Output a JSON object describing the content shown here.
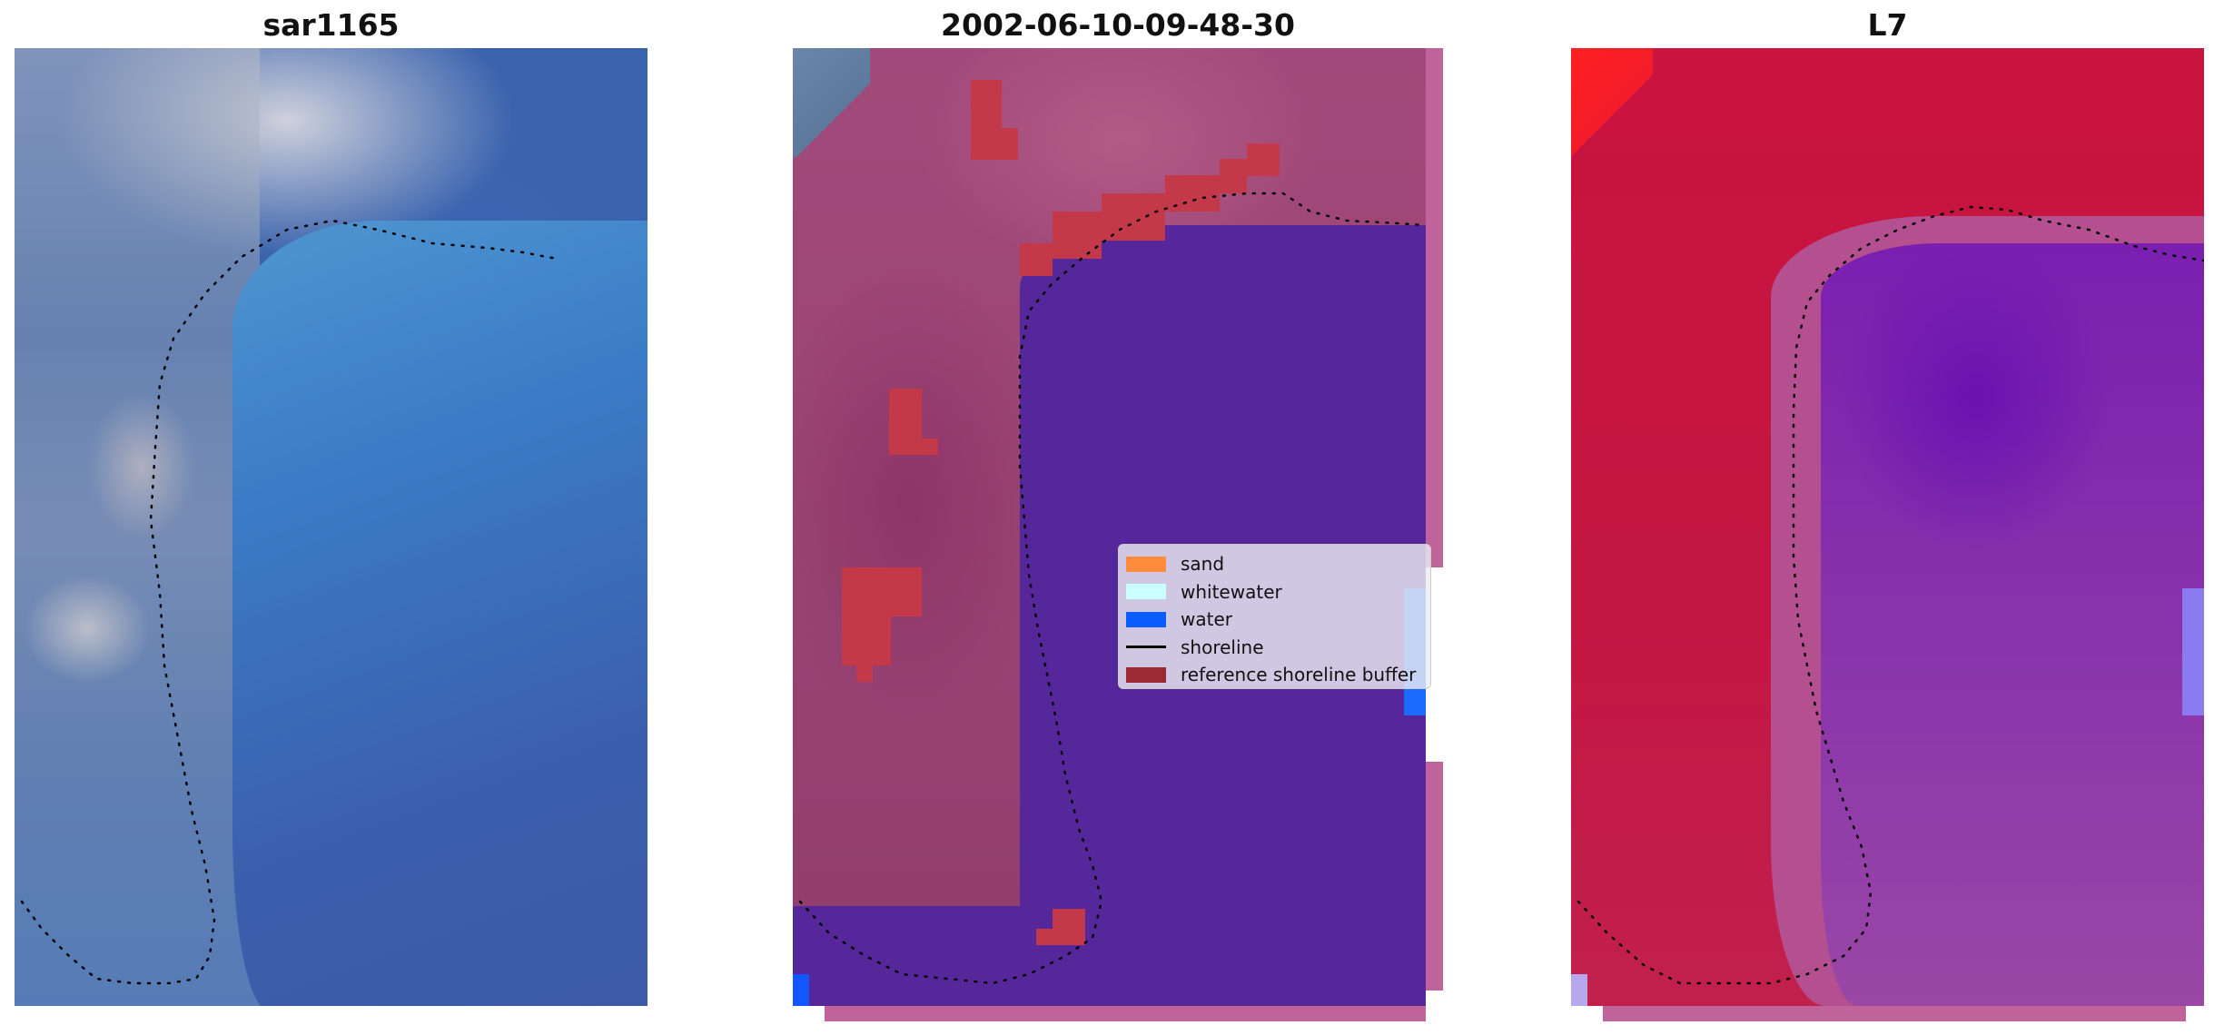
{
  "figure": {
    "panels": [
      {
        "title": "sar1165"
      },
      {
        "title": "2002-06-10-09-48-30"
      },
      {
        "title": "L7"
      }
    ],
    "legend": {
      "placement": "center-right of middle panel",
      "items": [
        {
          "label": "sand",
          "color": "#ff8c3c",
          "kind": "patch"
        },
        {
          "label": "whitewater",
          "color": "#ccffff",
          "kind": "patch"
        },
        {
          "label": "water",
          "color": "#0a5cff",
          "kind": "patch"
        },
        {
          "label": "shoreline",
          "color": "#000000",
          "kind": "line"
        },
        {
          "label": "reference shoreline buffer",
          "color": "#9b2a35",
          "kind": "patch"
        }
      ]
    },
    "colors": {
      "rgb_water": "#3b66ae",
      "classified_water": "#56279b",
      "classified_land": "#9a4574",
      "buffer": "#c4394a",
      "mndwi_land": "#c41643",
      "mndwi_water": "#7a1fb0"
    }
  }
}
